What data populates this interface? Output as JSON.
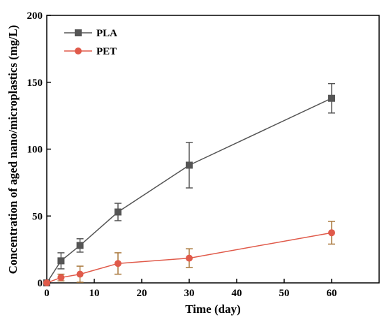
{
  "chart_data": {
    "type": "line",
    "title": "",
    "xlabel": "Time (day)",
    "ylabel": "Concentration of aged nano/microplastics (mg/L)",
    "xlim": [
      0,
      70
    ],
    "ylim": [
      0,
      200
    ],
    "xticks": [
      0,
      10,
      20,
      30,
      40,
      50,
      60
    ],
    "yticks": [
      0,
      50,
      100,
      150,
      200
    ],
    "grid": false,
    "legend": "top-left",
    "series": [
      {
        "name": "PLA",
        "color": "#555555",
        "marker": "square",
        "x": [
          0,
          3,
          7,
          15,
          30,
          60
        ],
        "y": [
          0,
          16.5,
          28,
          53,
          88,
          138
        ],
        "err": [
          0,
          6,
          5,
          6.5,
          17,
          11
        ]
      },
      {
        "name": "PET",
        "color": "#e05a4a",
        "marker": "circle",
        "x": [
          0,
          3,
          7,
          15,
          30,
          60
        ],
        "y": [
          0,
          4,
          6.5,
          14.5,
          18.5,
          37.5
        ],
        "err": [
          0,
          2.5,
          6,
          8,
          7,
          8.5
        ]
      }
    ]
  }
}
